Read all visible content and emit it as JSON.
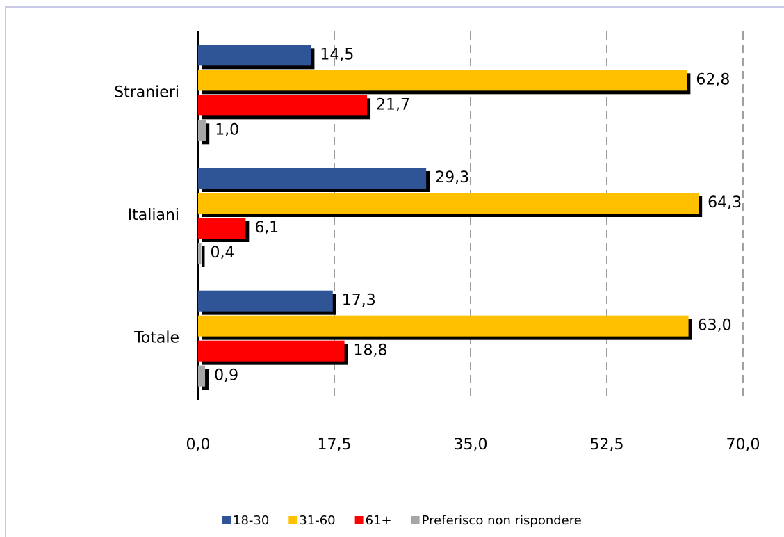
{
  "chart_data": {
    "type": "bar",
    "orientation": "horizontal",
    "categories": [
      "Stranieri",
      "Italiani",
      "Totale"
    ],
    "series": [
      {
        "name": "18-30",
        "color": "#2f5597",
        "values": [
          14.5,
          29.3,
          17.3
        ],
        "value_labels": [
          "14,5",
          "29,3",
          "17,3"
        ]
      },
      {
        "name": "31-60",
        "color": "#ffc000",
        "values": [
          62.8,
          64.3,
          63.0
        ],
        "value_labels": [
          "62,8",
          "64,3",
          "63,0"
        ]
      },
      {
        "name": "61+",
        "color": "#ff0000",
        "values": [
          21.7,
          6.1,
          18.8
        ],
        "value_labels": [
          "21,7",
          "6,1",
          "18,8"
        ]
      },
      {
        "name": "Preferisco non rispondere",
        "color": "#a6a6a6",
        "values": [
          1.0,
          0.4,
          0.9
        ],
        "value_labels": [
          "1,0",
          "0,4",
          "0,9"
        ]
      }
    ],
    "xlim": [
      0,
      70
    ],
    "xticks": [
      {
        "value": 0,
        "label": "0,0"
      },
      {
        "value": 17.5,
        "label": "17,5"
      },
      {
        "value": 35,
        "label": "35,0"
      },
      {
        "value": 52.5,
        "label": "52,5"
      },
      {
        "value": 70,
        "label": "70,0"
      }
    ],
    "grid": true,
    "legend": "bottom"
  }
}
